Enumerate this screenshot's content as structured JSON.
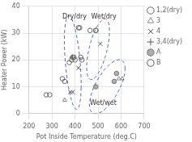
{
  "chart_data": {
    "type": "scatter",
    "xlabel": "Pot Inside Temperature (deg.C)",
    "ylabel": "Heater Power (kW)",
    "xlim": [
      200,
      700
    ],
    "ylim": [
      0,
      40
    ],
    "xticks": [
      200,
      300,
      400,
      500,
      600,
      700
    ],
    "yticks": [
      0,
      10,
      20,
      30,
      40
    ],
    "grid": true,
    "legend": "right",
    "series": [
      {
        "name": "1,2(dry)",
        "marker": "circle",
        "color": "#666666",
        "values": [
          [
            275,
            7
          ],
          [
            290,
            7
          ],
          [
            345,
            13
          ],
          [
            355,
            12
          ],
          [
            375,
            19
          ],
          [
            385,
            20
          ],
          [
            390,
            21
          ],
          [
            395,
            21
          ],
          [
            400,
            20
          ],
          [
            415,
            32
          ],
          [
            420,
            32
          ],
          [
            425,
            21
          ],
          [
            430,
            20
          ],
          [
            465,
            31
          ],
          [
            490,
            31
          ]
        ]
      },
      {
        "name": "3",
        "marker": "triangle",
        "color": "#888888",
        "values": [
          [
            355,
            5
          ],
          [
            590,
            13
          ],
          [
            605,
            13
          ]
        ]
      },
      {
        "name": "4",
        "marker": "x",
        "color": "#555555",
        "values": [
          [
            415,
            17
          ],
          [
            510,
            26
          ],
          [
            380,
            8
          ],
          [
            390,
            8
          ]
        ]
      },
      {
        "name": "3,4(dry)",
        "marker": "plus",
        "color": "#555555",
        "values": [
          [
            388,
            21
          ]
        ]
      },
      {
        "name": "A",
        "marker": "filled_circle",
        "color": "#777777",
        "values": [
          [
            490,
            10
          ],
          [
            570,
            12
          ],
          [
            580,
            15
          ]
        ]
      },
      {
        "name": "B",
        "marker": "circle",
        "color": "#555555",
        "values": [
          [
            490,
            31
          ]
        ]
      }
    ],
    "ellipses": [
      {
        "label": "Dry/dry",
        "center": [
          390,
          19
        ],
        "width": 75,
        "height": 30,
        "angle": -15,
        "label_x": 345,
        "label_y": 35.5,
        "color": "#4466cc",
        "line_style": "dashed"
      },
      {
        "label": "Wet/dry",
        "center": [
          500,
          24
        ],
        "width": 100,
        "height": 18,
        "angle": 8,
        "label_x": 470,
        "label_y": 35.5,
        "color": "#4466cc",
        "line_style": "dashed"
      },
      {
        "label": "Wet/wet",
        "center": [
          540,
          10
        ],
        "width": 155,
        "height": 15,
        "angle": 5,
        "label_x": 465,
        "label_y": 3.2,
        "color": "#4466cc",
        "line_style": "dashed"
      }
    ]
  }
}
